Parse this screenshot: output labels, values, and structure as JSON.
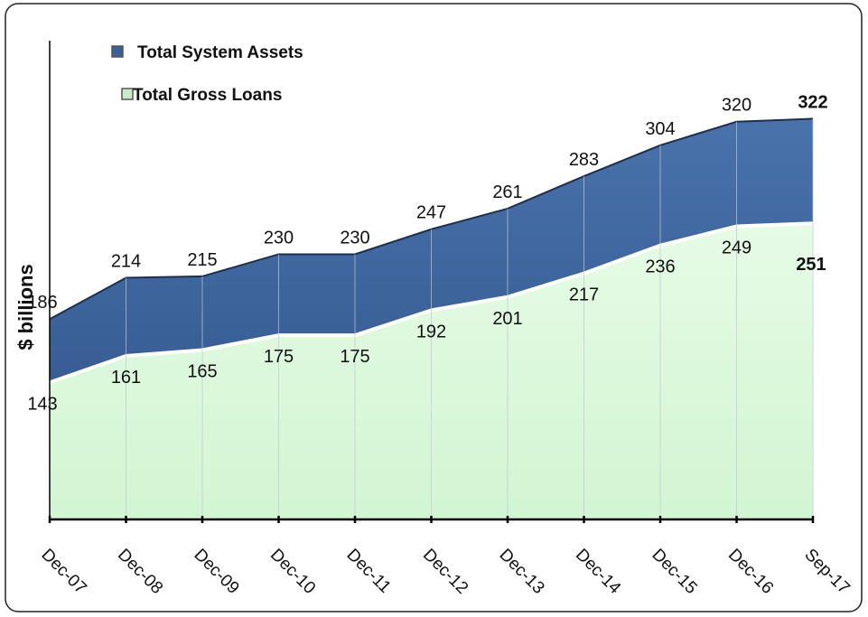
{
  "chart_data": {
    "type": "area",
    "y_label": "$ billions",
    "categories": [
      "Dec-07",
      "Dec-08",
      "Dec-09",
      "Dec-10",
      "Dec-11",
      "Dec-12",
      "Dec-13",
      "Dec-14",
      "Dec-15",
      "Dec-16",
      "Sep-17"
    ],
    "series": [
      {
        "name": "Total System Assets",
        "color": "#3b6096",
        "values": [
          186,
          214,
          215,
          230,
          230,
          247,
          261,
          283,
          304,
          320,
          322
        ]
      },
      {
        "name": "Total Gross Loans",
        "color": "#d8f8d8",
        "values": [
          143,
          161,
          165,
          175,
          175,
          192,
          201,
          217,
          236,
          249,
          251
        ]
      }
    ],
    "ylim": [
      50,
      375
    ]
  }
}
